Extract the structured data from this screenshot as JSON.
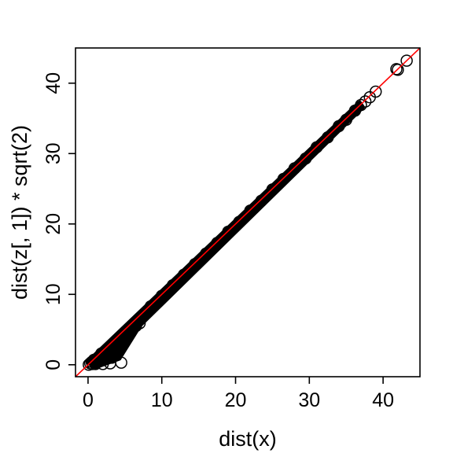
{
  "chart_data": {
    "type": "scatter",
    "title": "",
    "xlabel": "dist(x)",
    "ylabel": "dist(z[, 1]) * sqrt(2)",
    "xlim": [
      -1.7,
      45
    ],
    "ylim": [
      -1.7,
      45
    ],
    "x_ticks": [
      0,
      10,
      20,
      30,
      40
    ],
    "y_ticks": [
      0,
      10,
      20,
      30,
      40
    ],
    "grid": false,
    "point_shape": "open-circle",
    "point_color": "#000000",
    "reference_line": {
      "type": "identity",
      "intercept": 0,
      "slope": 1,
      "color": "#ff0000"
    },
    "series": [
      {
        "points": [
          [
            43.2,
            43.2
          ],
          [
            42.0,
            41.9
          ],
          [
            41.8,
            42.0
          ],
          [
            39.0,
            38.8
          ],
          [
            38.2,
            38.0
          ],
          [
            37.6,
            37.4
          ],
          [
            37.0,
            36.9
          ],
          [
            36.2,
            36.1
          ],
          [
            35.0,
            34.8
          ],
          [
            34.0,
            33.9
          ],
          [
            32.5,
            32.3
          ],
          [
            31.0,
            30.9
          ],
          [
            29.5,
            29.3
          ],
          [
            28.0,
            27.9
          ],
          [
            26.5,
            26.4
          ],
          [
            25.0,
            24.9
          ],
          [
            23.5,
            23.3
          ],
          [
            22.0,
            21.9
          ],
          [
            20.5,
            20.3
          ],
          [
            19.0,
            18.9
          ],
          [
            17.5,
            17.3
          ],
          [
            16.0,
            15.8
          ],
          [
            14.5,
            14.3
          ],
          [
            13.0,
            12.8
          ],
          [
            11.5,
            11.3
          ],
          [
            10.0,
            9.8
          ],
          [
            8.5,
            8.3
          ],
          [
            7.5,
            7.0
          ],
          [
            7.0,
            5.9
          ],
          [
            6.5,
            5.5
          ],
          [
            6.0,
            5.6
          ],
          [
            5.5,
            4.9
          ],
          [
            5.0,
            4.6
          ],
          [
            4.6,
            3.9
          ],
          [
            4.3,
            2.2
          ],
          [
            4.5,
            0.3
          ],
          [
            4.0,
            3.5
          ],
          [
            3.6,
            3.1
          ],
          [
            3.4,
            2.5
          ],
          [
            3.2,
            1.0
          ],
          [
            3.0,
            0.2
          ],
          [
            2.8,
            2.4
          ],
          [
            2.5,
            2.0
          ],
          [
            2.3,
            1.3
          ],
          [
            2.0,
            0.1
          ],
          [
            1.8,
            1.6
          ],
          [
            1.5,
            1.1
          ],
          [
            1.3,
            0.6
          ],
          [
            1.0,
            0.1
          ],
          [
            0.8,
            0.7
          ],
          [
            0.5,
            0.4
          ],
          [
            0.3,
            0.2
          ],
          [
            0.1,
            0.0
          ],
          [
            0.6,
            0.1
          ]
        ]
      }
    ]
  }
}
